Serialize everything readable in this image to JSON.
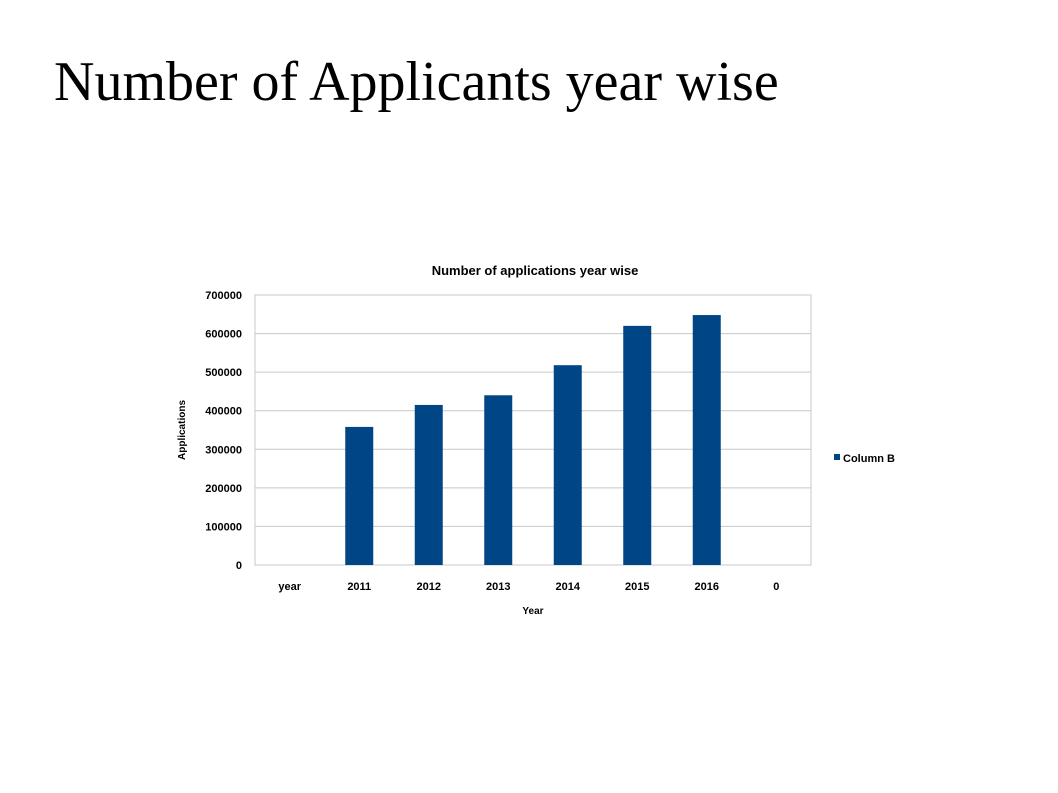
{
  "slide": {
    "title": "Number of Applicants year wise"
  },
  "colors": {
    "bar": "#004586",
    "grid": "#c8c8c8"
  },
  "chart_data": {
    "type": "bar",
    "title": "Number of applications  year wise",
    "xlabel": "Year",
    "ylabel": "Applications",
    "categories": [
      "year",
      "2011",
      "2012",
      "2013",
      "2014",
      "2015",
      "2016",
      "0"
    ],
    "series": [
      {
        "name": "Column B",
        "values": [
          0,
          358000,
          415000,
          440000,
          518000,
          620000,
          648000,
          0
        ]
      }
    ],
    "ylim": [
      0,
      700000
    ],
    "yticks": [
      "0",
      "100000",
      "200000",
      "300000",
      "400000",
      "500000",
      "600000",
      "700000"
    ],
    "grid": true,
    "legend": "right"
  }
}
